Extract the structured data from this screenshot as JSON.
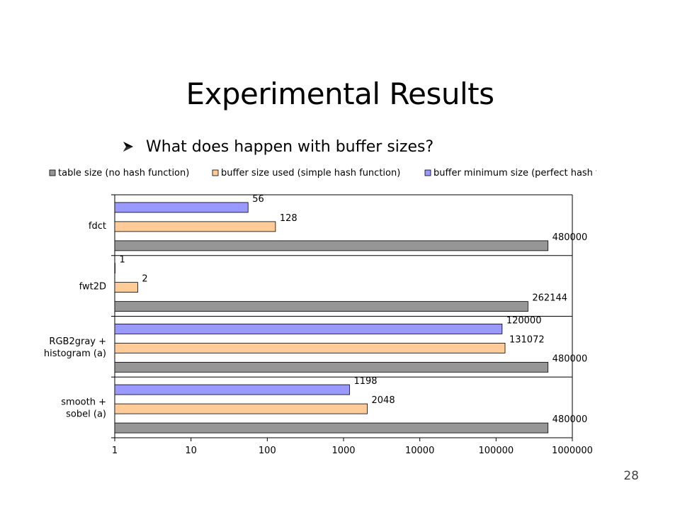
{
  "slide": {
    "title": "Experimental Results",
    "bullet": "What does happen with buffer sizes?",
    "page_number": "28"
  },
  "chart_data": {
    "type": "bar",
    "orientation": "horizontal",
    "x_scale": "log",
    "xlim": [
      1,
      1000000
    ],
    "x_ticks": [
      1,
      10,
      100,
      1000,
      10000,
      100000,
      1000000
    ],
    "x_tick_labels": [
      "1",
      "10",
      "100",
      "1000",
      "10000",
      "100000",
      "1000000"
    ],
    "grid": false,
    "legend_position": "top",
    "categories": [
      "fdct",
      "fwt2D",
      "RGB2gray + histogram (a)",
      "smooth + sobel (a)"
    ],
    "series": [
      {
        "name": "table size (no hash function)",
        "color": "#969696",
        "values": [
          480000,
          262144,
          480000,
          480000
        ]
      },
      {
        "name": "buffer size used (simple hash function)",
        "color": "#FFCC99",
        "values": [
          128,
          2,
          131072,
          2048
        ]
      },
      {
        "name": "buffer minimum size (perfect hash function)",
        "color": "#9999FF",
        "values": [
          56,
          1,
          120000,
          1198
        ]
      }
    ]
  }
}
